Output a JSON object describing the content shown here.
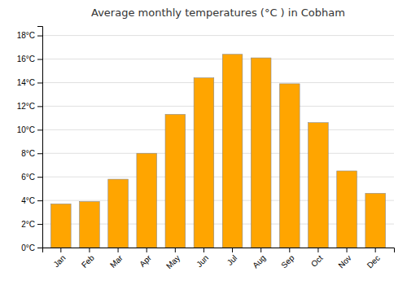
{
  "chart_data": {
    "type": "bar",
    "title": "Average monthly temperatures (°C ) in Cobham",
    "categories": [
      "Jan",
      "Feb",
      "Mar",
      "Apr",
      "May",
      "Jun",
      "Jul",
      "Aug",
      "Sep",
      "Oct",
      "Nov",
      "Dec"
    ],
    "values": [
      3.7,
      3.9,
      5.8,
      8.0,
      11.3,
      14.4,
      16.4,
      16.1,
      13.9,
      10.6,
      6.5,
      4.6
    ],
    "color": "#FFA500",
    "ylim": [
      0,
      18.8
    ],
    "yticks": [
      {
        "value": 0,
        "label": "0°C"
      },
      {
        "value": 2,
        "label": "2°C"
      },
      {
        "value": 4,
        "label": "4°C"
      },
      {
        "value": 6,
        "label": "6°C"
      },
      {
        "value": 8,
        "label": "8°C"
      },
      {
        "value": 10,
        "label": "10°C"
      },
      {
        "value": 12,
        "label": "12°C"
      },
      {
        "value": 14,
        "label": "14°C"
      },
      {
        "value": 16,
        "label": "16°C"
      },
      {
        "value": 18,
        "label": "18°C"
      }
    ],
    "grid": true
  }
}
